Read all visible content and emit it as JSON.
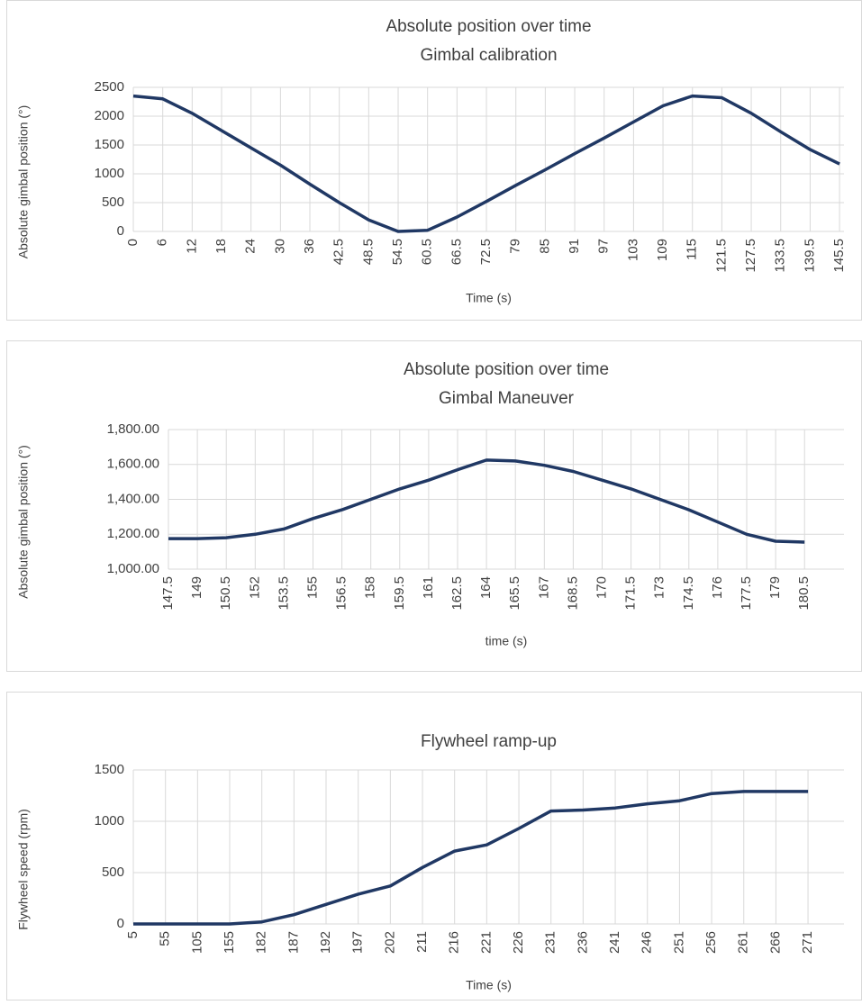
{
  "chart_data": [
    {
      "type": "line",
      "title": "Absolute position over time",
      "subtitle": "Gimbal calibration",
      "xlabel": "Time (s)",
      "ylabel": "Absolute gimbal position (°)",
      "categories": [
        "0",
        "6",
        "12",
        "18",
        "24",
        "30",
        "36",
        "42.5",
        "48.5",
        "54.5",
        "60.5",
        "66.5",
        "72.5",
        "79",
        "85",
        "91",
        "97",
        "103",
        "109",
        "115",
        "121.5",
        "127.5",
        "133.5",
        "139.5",
        "145.5"
      ],
      "values": [
        2350,
        2300,
        2050,
        1750,
        1450,
        1150,
        820,
        500,
        200,
        0,
        20,
        250,
        520,
        800,
        1070,
        1350,
        1620,
        1900,
        2180,
        2350,
        2320,
        2050,
        1730,
        1420,
        1170
      ],
      "color": "#203864",
      "ylim": [
        0,
        2500
      ],
      "yticks": [
        0,
        500,
        1000,
        1500,
        2000,
        2500
      ],
      "grid": true
    },
    {
      "type": "line",
      "title": "Absolute position over time",
      "subtitle": "Gimbal Maneuver",
      "xlabel": "time (s)",
      "ylabel": "Absolute gimbal position (°)",
      "categories": [
        "147.5",
        "149",
        "150.5",
        "152",
        "153.5",
        "155",
        "156.5",
        "158",
        "159.5",
        "161",
        "162.5",
        "164",
        "165.5",
        "167",
        "168.5",
        "170",
        "171.5",
        "173",
        "174.5",
        "176",
        "177.5",
        "179",
        "180.5"
      ],
      "values": [
        1175,
        1175,
        1180,
        1200,
        1230,
        1290,
        1340,
        1400,
        1460,
        1510,
        1570,
        1625,
        1620,
        1595,
        1560,
        1510,
        1460,
        1400,
        1340,
        1270,
        1200,
        1160,
        1155
      ],
      "color": "#203864",
      "ylim": [
        1000,
        1800
      ],
      "yticks": [
        {
          "value": 1000,
          "label": "1,000.00"
        },
        {
          "value": 1200,
          "label": "1,200.00"
        },
        {
          "value": 1400,
          "label": "1,400.00"
        },
        {
          "value": 1600,
          "label": "1,600.00"
        },
        {
          "value": 1800,
          "label": "1,800.00"
        }
      ],
      "grid": true
    },
    {
      "type": "line",
      "title": "Flywheel ramp-up",
      "xlabel": "Time (s)",
      "ylabel": "Flywheel speed (rpm)",
      "categories": [
        "5",
        "55",
        "105",
        "155",
        "182",
        "187",
        "192",
        "197",
        "202",
        "211",
        "216",
        "221",
        "226",
        "231",
        "236",
        "241",
        "246",
        "251",
        "256",
        "261",
        "266",
        "271"
      ],
      "values": [
        0,
        0,
        0,
        0,
        20,
        90,
        190,
        290,
        370,
        550,
        710,
        770,
        930,
        1100,
        1110,
        1130,
        1170,
        1200,
        1270,
        1290,
        1290,
        1290
      ],
      "color": "#203864",
      "ylim": [
        0,
        1500
      ],
      "yticks": [
        0,
        500,
        1000,
        1500
      ],
      "grid": true
    }
  ]
}
